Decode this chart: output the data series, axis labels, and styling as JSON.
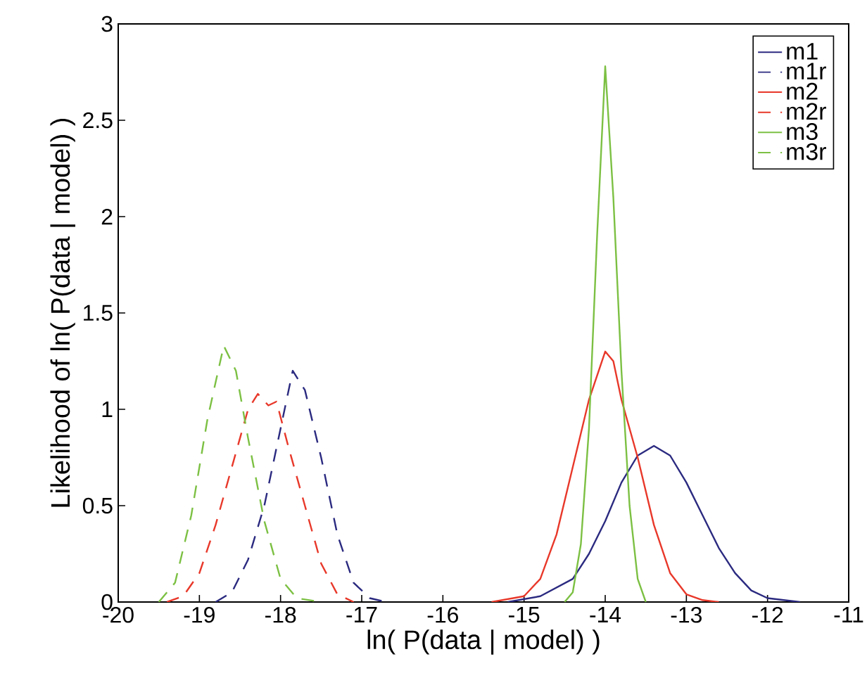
{
  "chart_data": {
    "type": "line",
    "xlabel": "ln( P(data | model) )",
    "ylabel": "Likelihood of ln( P(data | model) )",
    "xlim": [
      -20,
      -11
    ],
    "ylim": [
      0,
      3
    ],
    "xticks": [
      -20,
      -19,
      -18,
      -17,
      -16,
      -15,
      -14,
      -13,
      -12,
      -11
    ],
    "yticks": [
      0,
      0.5,
      1,
      1.5,
      2,
      2.5,
      3
    ],
    "grid": false,
    "legend": "top right",
    "marker": "none",
    "series": [
      {
        "name": "m1",
        "color": "#2b2a80",
        "line_style": "solid",
        "x": [
          -15.2,
          -14.8,
          -14.4,
          -14.2,
          -14.0,
          -13.8,
          -13.6,
          -13.4,
          -13.2,
          -13.0,
          -12.8,
          -12.6,
          -12.4,
          -12.2,
          -12.0,
          -11.6
        ],
        "values": [
          0,
          0.03,
          0.12,
          0.25,
          0.42,
          0.62,
          0.76,
          0.81,
          0.76,
          0.62,
          0.45,
          0.28,
          0.15,
          0.06,
          0.02,
          0
        ]
      },
      {
        "name": "m1r",
        "color": "#2b2a80",
        "line_style": "dashed",
        "x": [
          -18.8,
          -18.6,
          -18.4,
          -18.2,
          -18.0,
          -17.85,
          -17.7,
          -17.5,
          -17.3,
          -17.1,
          -16.9,
          -16.7
        ],
        "values": [
          0,
          0.05,
          0.22,
          0.5,
          0.9,
          1.2,
          1.1,
          0.75,
          0.35,
          0.1,
          0.02,
          0
        ]
      },
      {
        "name": "m2",
        "color": "#e8382a",
        "line_style": "solid",
        "x": [
          -15.4,
          -15.0,
          -14.8,
          -14.6,
          -14.4,
          -14.2,
          -14.0,
          -13.9,
          -13.8,
          -13.6,
          -13.4,
          -13.2,
          -13.0,
          -12.8,
          -12.6
        ],
        "values": [
          0,
          0.03,
          0.12,
          0.35,
          0.7,
          1.05,
          1.3,
          1.25,
          1.05,
          0.75,
          0.4,
          0.15,
          0.04,
          0.01,
          0
        ]
      },
      {
        "name": "m2r",
        "color": "#e8382a",
        "line_style": "dashed",
        "x": [
          -19.4,
          -19.2,
          -19.0,
          -18.8,
          -18.6,
          -18.4,
          -18.28,
          -18.15,
          -18.05,
          -17.9,
          -17.7,
          -17.5,
          -17.3,
          -17.1
        ],
        "values": [
          0,
          0.03,
          0.15,
          0.4,
          0.7,
          1.0,
          1.08,
          1.02,
          1.04,
          0.8,
          0.5,
          0.2,
          0.04,
          0
        ]
      },
      {
        "name": "m3",
        "color": "#7cc043",
        "line_style": "solid",
        "x": [
          -14.5,
          -14.4,
          -14.3,
          -14.2,
          -14.1,
          -14.0,
          -13.9,
          -13.8,
          -13.7,
          -13.6,
          -13.5
        ],
        "values": [
          0,
          0.05,
          0.3,
          0.9,
          1.9,
          2.78,
          2.1,
          1.2,
          0.5,
          0.12,
          0
        ]
      },
      {
        "name": "m3r",
        "color": "#7cc043",
        "line_style": "dashed",
        "x": [
          -19.5,
          -19.3,
          -19.1,
          -18.9,
          -18.7,
          -18.55,
          -18.4,
          -18.2,
          -18.0,
          -17.8,
          -17.5
        ],
        "values": [
          0,
          0.1,
          0.45,
          0.95,
          1.33,
          1.2,
          0.85,
          0.42,
          0.12,
          0.02,
          0
        ]
      }
    ]
  }
}
